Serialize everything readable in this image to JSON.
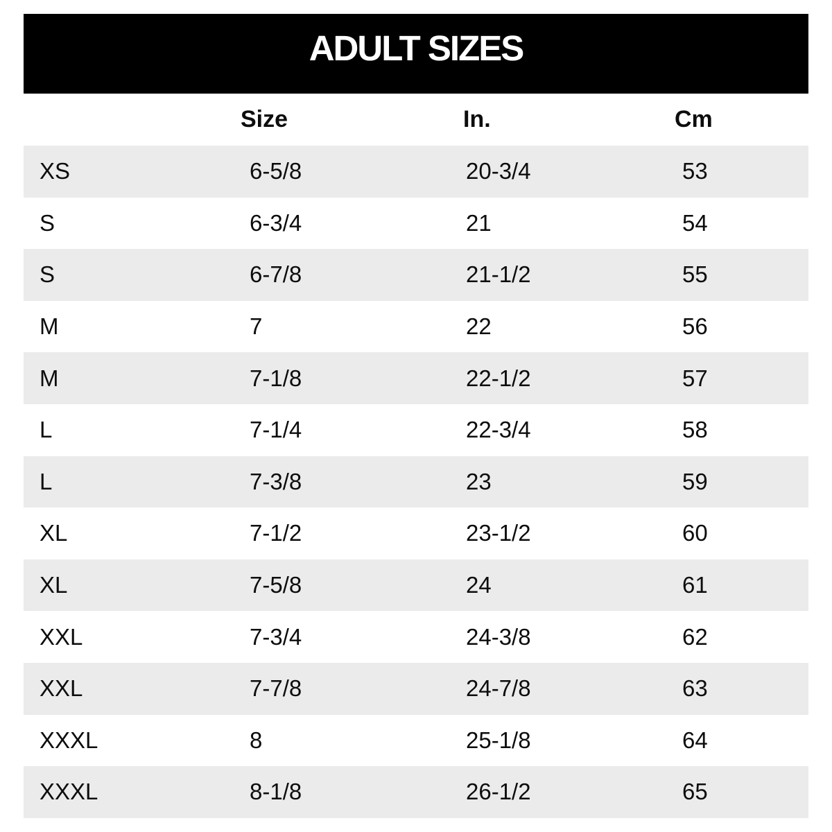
{
  "chart_data": {
    "type": "table",
    "title": "ADULT SIZES",
    "columns": [
      "",
      "Size",
      "In.",
      "Cm"
    ],
    "rows": [
      [
        "XS",
        "6-5/8",
        "20-3/4",
        "53"
      ],
      [
        "S",
        "6-3/4",
        "21",
        "54"
      ],
      [
        "S",
        "6-7/8",
        "21-1/2",
        "55"
      ],
      [
        "M",
        "7",
        "22",
        "56"
      ],
      [
        "M",
        "7-1/8",
        "22-1/2",
        "57"
      ],
      [
        "L",
        "7-1/4",
        "22-3/4",
        "58"
      ],
      [
        "L",
        "7-3/8",
        "23",
        "59"
      ],
      [
        "XL",
        "7-1/2",
        "23-1/2",
        "60"
      ],
      [
        "XL",
        "7-5/8",
        "24",
        "61"
      ],
      [
        "XXL",
        "7-3/4",
        "24-3/8",
        "62"
      ],
      [
        "XXL",
        "7-7/8",
        "24-7/8",
        "63"
      ],
      [
        "XXXL",
        "8",
        "25-1/8",
        "64"
      ],
      [
        "XXXL",
        "8-1/8",
        "26-1/2",
        "65"
      ]
    ],
    "layout": {
      "header_bar_bg": "#000000",
      "header_bar_text_color": "#ffffff",
      "row_alt_color": "#ebebeb",
      "row_base_color": "#ffffff",
      "text_color": "#0d0d0d",
      "grid": "off",
      "first_row_shaded": true
    }
  }
}
